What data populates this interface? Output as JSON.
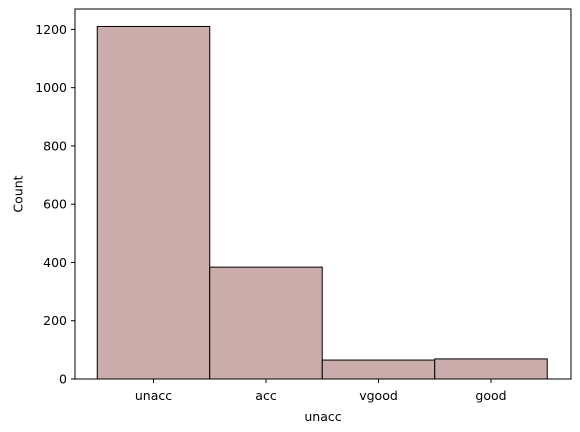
{
  "chart_data": {
    "type": "bar",
    "categories": [
      "unacc",
      "acc",
      "vgood",
      "good"
    ],
    "values": [
      1210,
      384,
      65,
      69
    ],
    "title": "",
    "xlabel": "unacc",
    "ylabel": "Count",
    "ylim": [
      0,
      1270
    ],
    "yticks": [
      0,
      200,
      400,
      600,
      800,
      1000,
      1200
    ],
    "grid": false,
    "legend": "none",
    "bar_color": "#cbadab",
    "edge_color": "#000000"
  }
}
